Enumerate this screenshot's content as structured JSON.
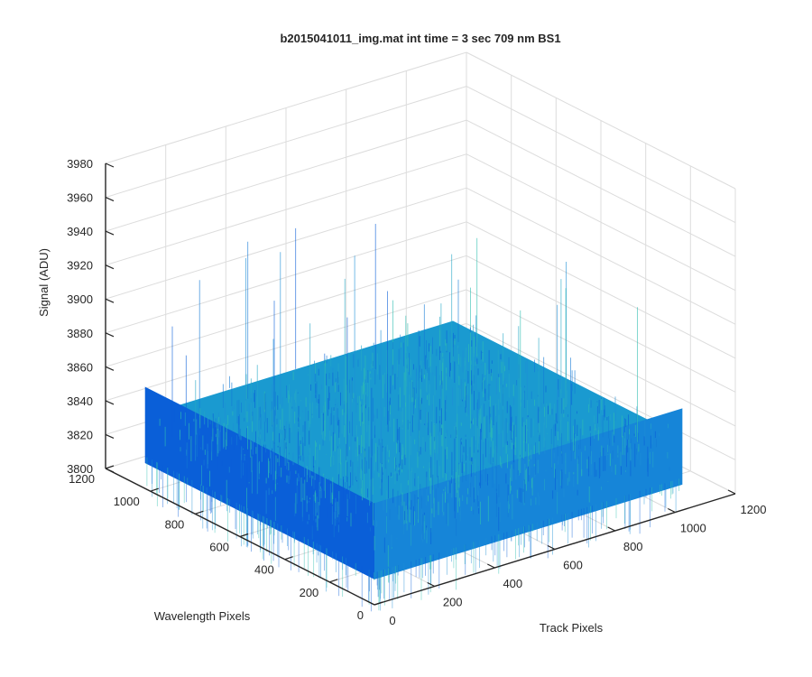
{
  "chart_data": {
    "type": "surface",
    "title": "b2015041011_img.mat int time = 3 sec  709 nm BS1",
    "xlabel": "Track Pixels",
    "ylabel": "Wavelength Pixels",
    "zlabel": "Signal (ADU)",
    "xlim": [
      0,
      1200
    ],
    "ylim": [
      0,
      1200
    ],
    "zlim": [
      3800,
      3980
    ],
    "x_ticks": [
      "0",
      "200",
      "400",
      "600",
      "800",
      "1000",
      "1200"
    ],
    "y_ticks": [
      "0",
      "200",
      "400",
      "600",
      "800",
      "1000",
      "1200"
    ],
    "z_ticks": [
      "3800",
      "3820",
      "3840",
      "3860",
      "3880",
      "3900",
      "3920",
      "3940",
      "3960",
      "3980"
    ],
    "surface": {
      "x_range": [
        0,
        1024
      ],
      "y_range": [
        0,
        1024
      ],
      "mean_signal": 3835,
      "noise_band": [
        3815,
        3860
      ],
      "peak_max": 3930,
      "colormap": "parula",
      "colors": {
        "low": "#0a5fd8",
        "mid": "#1e8fd6",
        "high": "#2fbfb0"
      }
    },
    "grid": true,
    "view": "3d"
  },
  "colors": {
    "axis": "#262626",
    "grid": "#dcdcdc",
    "background": "#ffffff"
  }
}
